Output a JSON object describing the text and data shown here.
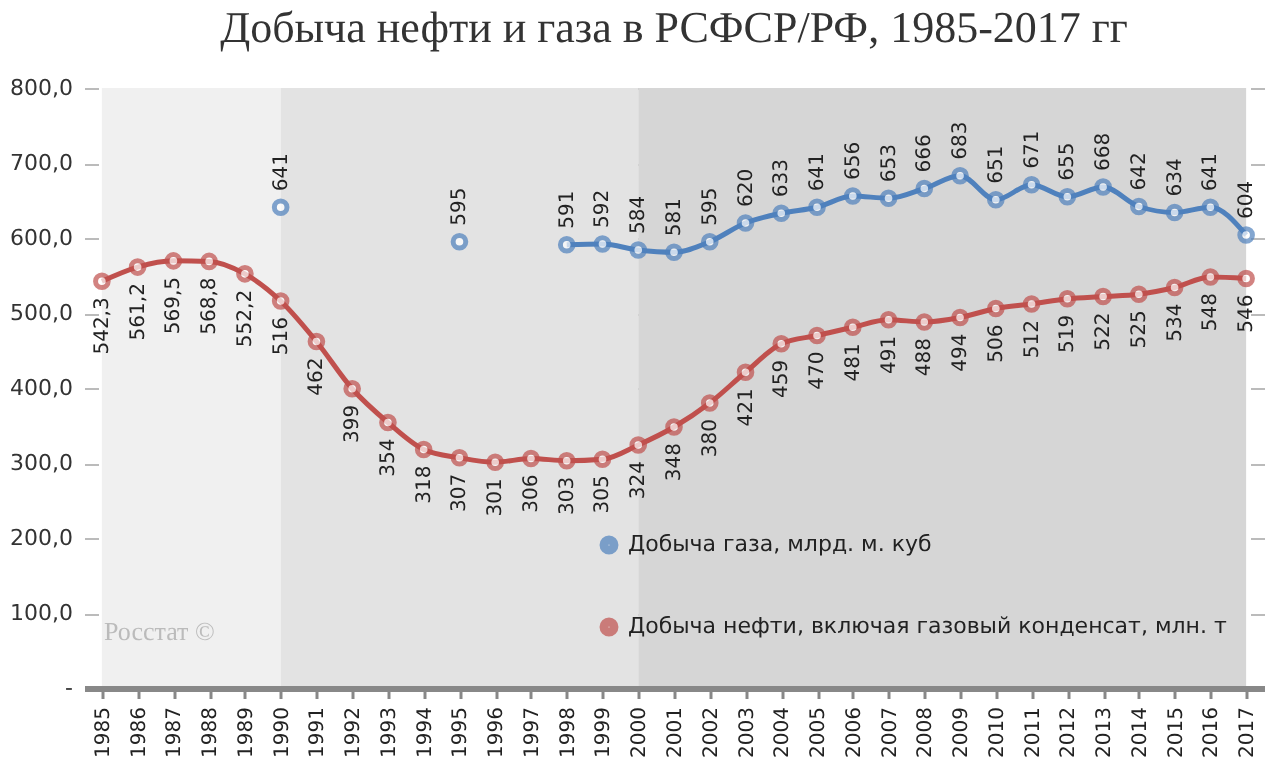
{
  "chart_data": {
    "type": "line",
    "title": "Добыча нефти и газа в РСФСР/РФ, 1985-2017 гг",
    "categories": [
      "1985",
      "1986",
      "1987",
      "1988",
      "1989",
      "1990",
      "1991",
      "1992",
      "1993",
      "1994",
      "1995",
      "1996",
      "1997",
      "1998",
      "1999",
      "2000",
      "2001",
      "2002",
      "2003",
      "2004",
      "2005",
      "2006",
      "2007",
      "2008",
      "2009",
      "2010",
      "2011",
      "2012",
      "2013",
      "2014",
      "2015",
      "2016",
      "2017"
    ],
    "series": [
      {
        "name": "Добыча газа, млрд. м. куб",
        "color": "#4f81bd",
        "values": [
          null,
          null,
          null,
          null,
          null,
          641,
          null,
          null,
          null,
          null,
          595,
          null,
          null,
          591,
          592,
          584,
          581,
          595,
          620,
          633,
          641,
          656,
          653,
          666,
          683,
          651,
          671,
          655,
          668,
          642,
          634,
          641,
          604
        ],
        "value_labels": [
          null,
          null,
          null,
          null,
          null,
          "641",
          null,
          null,
          null,
          null,
          "595",
          null,
          null,
          "591",
          "592",
          "584",
          "581",
          "595",
          "620",
          "633",
          "641",
          "656",
          "653",
          "666",
          "683",
          "651",
          "671",
          "655",
          "668",
          "642",
          "634",
          "641",
          "604"
        ]
      },
      {
        "name": "Добыча нефти, включая газовый конденсат, млн. т",
        "color": "#c0504d",
        "values": [
          542.3,
          561.2,
          569.5,
          568.8,
          552.2,
          516,
          462,
          399,
          354,
          318,
          307,
          301,
          306,
          303,
          305,
          324,
          348,
          380,
          421,
          459,
          470,
          481,
          491,
          488,
          494,
          506,
          512,
          519,
          522,
          525,
          534,
          548,
          546
        ],
        "value_labels": [
          "542,3",
          "561,2",
          "569,5",
          "568,8",
          "552,2",
          "516",
          "462",
          "399",
          "354",
          "318",
          "307",
          "301",
          "306",
          "303",
          "305",
          "324",
          "348",
          "380",
          "421",
          "459",
          "470",
          "481",
          "491",
          "488",
          "494",
          "506",
          "512",
          "519",
          "522",
          "525",
          "534",
          "548",
          "546"
        ]
      }
    ],
    "ylim": [
      0,
      800
    ],
    "yticks": [
      {
        "value": 0,
        "label": "-"
      },
      {
        "value": 100,
        "label": "100,0"
      },
      {
        "value": 200,
        "label": "200,0"
      },
      {
        "value": 300,
        "label": "300,0"
      },
      {
        "value": 400,
        "label": "400,0"
      },
      {
        "value": 500,
        "label": "500,0"
      },
      {
        "value": 600,
        "label": "600,0"
      },
      {
        "value": 700,
        "label": "700,0"
      },
      {
        "value": 800,
        "label": "800,0"
      }
    ],
    "bands": [
      {
        "axis": "x",
        "from": "1985",
        "to": "1990",
        "color": "#f0f0f0"
      },
      {
        "axis": "x",
        "from": "1990",
        "to": "2000",
        "color": "#e3e3e3"
      },
      {
        "axis": "x",
        "from": "2000",
        "to": "2017",
        "color": "#d6d6d6"
      }
    ],
    "annotations": [
      "Росстат ©"
    ],
    "grid": "y",
    "legend": "bottom right",
    "marker": "circle",
    "line_style": "solid"
  }
}
